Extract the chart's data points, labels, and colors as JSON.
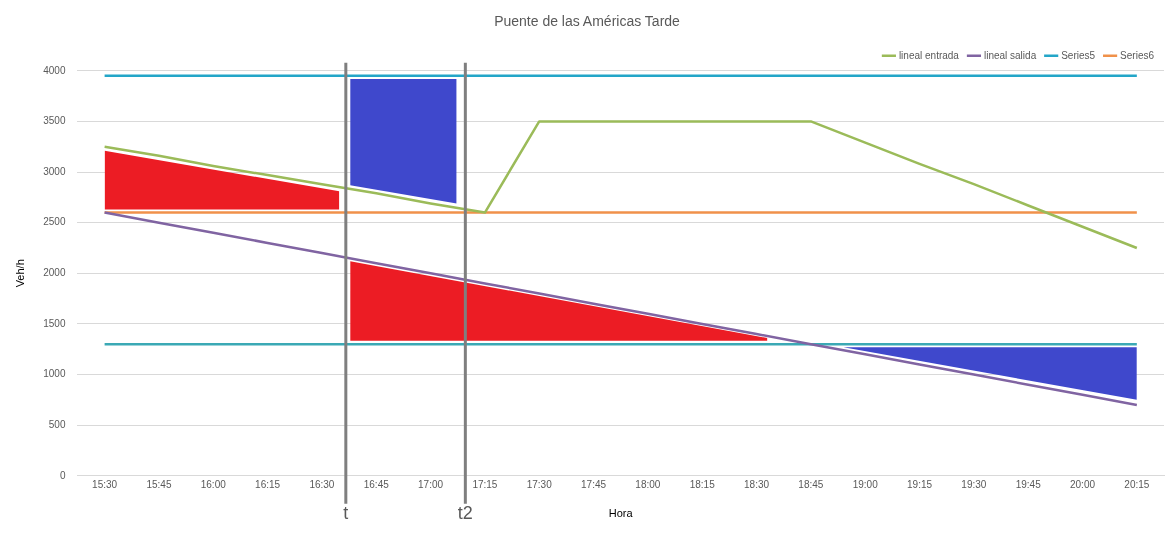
{
  "chart_data": {
    "type": "line",
    "title": "Puente de las Américas Tarde",
    "xlabel": "Hora",
    "ylabel": "Veh/h",
    "x": [
      15.5,
      15.75,
      16,
      16.25,
      16.5,
      16.75,
      17,
      17.25,
      17.5,
      17.75,
      18,
      18.25,
      18.5,
      18.75,
      19,
      19.25,
      19.5,
      19.75,
      20,
      20.25
    ],
    "xlim": [
      15.375,
      20.375
    ],
    "xticks": [
      {
        "value": 15.5,
        "label": "15:30"
      },
      {
        "value": 15.75,
        "label": "15:45"
      },
      {
        "value": 16,
        "label": "16:00"
      },
      {
        "value": 16.25,
        "label": "16:15"
      },
      {
        "value": 16.5,
        "label": "16:30"
      },
      {
        "value": 16.75,
        "label": "16:45"
      },
      {
        "value": 17,
        "label": "17:00"
      },
      {
        "value": 17.25,
        "label": "17:15"
      },
      {
        "value": 17.5,
        "label": "17:30"
      },
      {
        "value": 17.75,
        "label": "17:45"
      },
      {
        "value": 18,
        "label": "18:00"
      },
      {
        "value": 18.25,
        "label": "18:15"
      },
      {
        "value": 18.5,
        "label": "18:30"
      },
      {
        "value": 18.75,
        "label": "18:45"
      },
      {
        "value": 19,
        "label": "19:00"
      },
      {
        "value": 19.25,
        "label": "19:15"
      },
      {
        "value": 19.5,
        "label": "19:30"
      },
      {
        "value": 19.75,
        "label": "19:45"
      },
      {
        "value": 20,
        "label": "20:00"
      },
      {
        "value": 20.25,
        "label": "20:15"
      }
    ],
    "ylim": [
      0,
      4000
    ],
    "yticks": [
      0,
      500,
      1000,
      1500,
      2000,
      2500,
      3000,
      3500,
      4000
    ],
    "grid": "y",
    "legend": "top right",
    "marker": "none",
    "series": [
      {
        "color": "#ec1c24",
        "x": [
          15.5,
          16.58
        ],
        "values": [
          null,
          null
        ],
        "lower": [
          2630,
          2630
        ],
        "upper": [
          3210,
          2810
        ]
      },
      {
        "color": "#3f48cc",
        "x": [
          16.63,
          17.12
        ],
        "values": [
          null,
          null
        ],
        "lower": [
          2870,
          2690
        ],
        "upper": [
          3920,
          3920
        ]
      },
      {
        "color": "#ec1c24",
        "x": [
          16.63,
          18.55
        ],
        "values": [
          null,
          null
        ],
        "lower": [
          1335,
          1335
        ],
        "upper": [
          2120,
          1360
        ]
      },
      {
        "color": "#3f48cc",
        "x": [
          18.9,
          20.25
        ],
        "values": [
          null,
          null
        ],
        "lower": [
          1270,
          750
        ],
        "upper": [
          1270,
          1270
        ]
      },
      {
        "name": "lineal entrada",
        "color": "#9bbb59",
        "values": [
          3250,
          3160,
          3060,
          2970,
          2880,
          2790,
          2690,
          2600,
          3500,
          3500,
          3500,
          3500,
          3500,
          3500,
          3290,
          3080,
          2880,
          2670,
          2460,
          2250
        ]
      },
      {
        "name": "lineal salida",
        "color": "#8064a2",
        "values": [
          2600,
          2500,
          2400,
          2300,
          2200,
          2100,
          2000,
          1900,
          1800,
          1700,
          1600,
          1500,
          1400,
          1300,
          1200,
          1100,
          1000,
          900,
          800,
          700
        ]
      },
      {
        "name": "Series5",
        "color": "#23a6c8",
        "values": [
          3950,
          3950,
          3950,
          3950,
          3950,
          3950,
          3950,
          3950,
          3950,
          3950,
          3950,
          3950,
          3950,
          3950,
          3950,
          3950,
          3950,
          3950,
          3950,
          3950
        ]
      },
      {
        "name": "Series6",
        "color": "#f0914a",
        "values": [
          2600,
          2600,
          2600,
          2600,
          2600,
          2600,
          2600,
          2600,
          2600,
          2600,
          2600,
          2600,
          2600,
          2600,
          2600,
          2600,
          2600,
          2600,
          2600,
          2600
        ]
      },
      {
        "color": "#3ba9b5",
        "values": [
          1300,
          1300,
          1300,
          1300,
          1300,
          1300,
          1300,
          1300,
          1300,
          1300,
          1300,
          1300,
          1300,
          1300,
          1300,
          1300,
          1300,
          1300,
          1300,
          1300
        ]
      }
    ],
    "ref_lines": [
      {
        "axis": "x",
        "value": 16.61,
        "label": "t",
        "color": "#7f7f7f"
      },
      {
        "axis": "x",
        "value": 17.16,
        "label": "t2",
        "color": "#7f7f7f"
      }
    ]
  }
}
